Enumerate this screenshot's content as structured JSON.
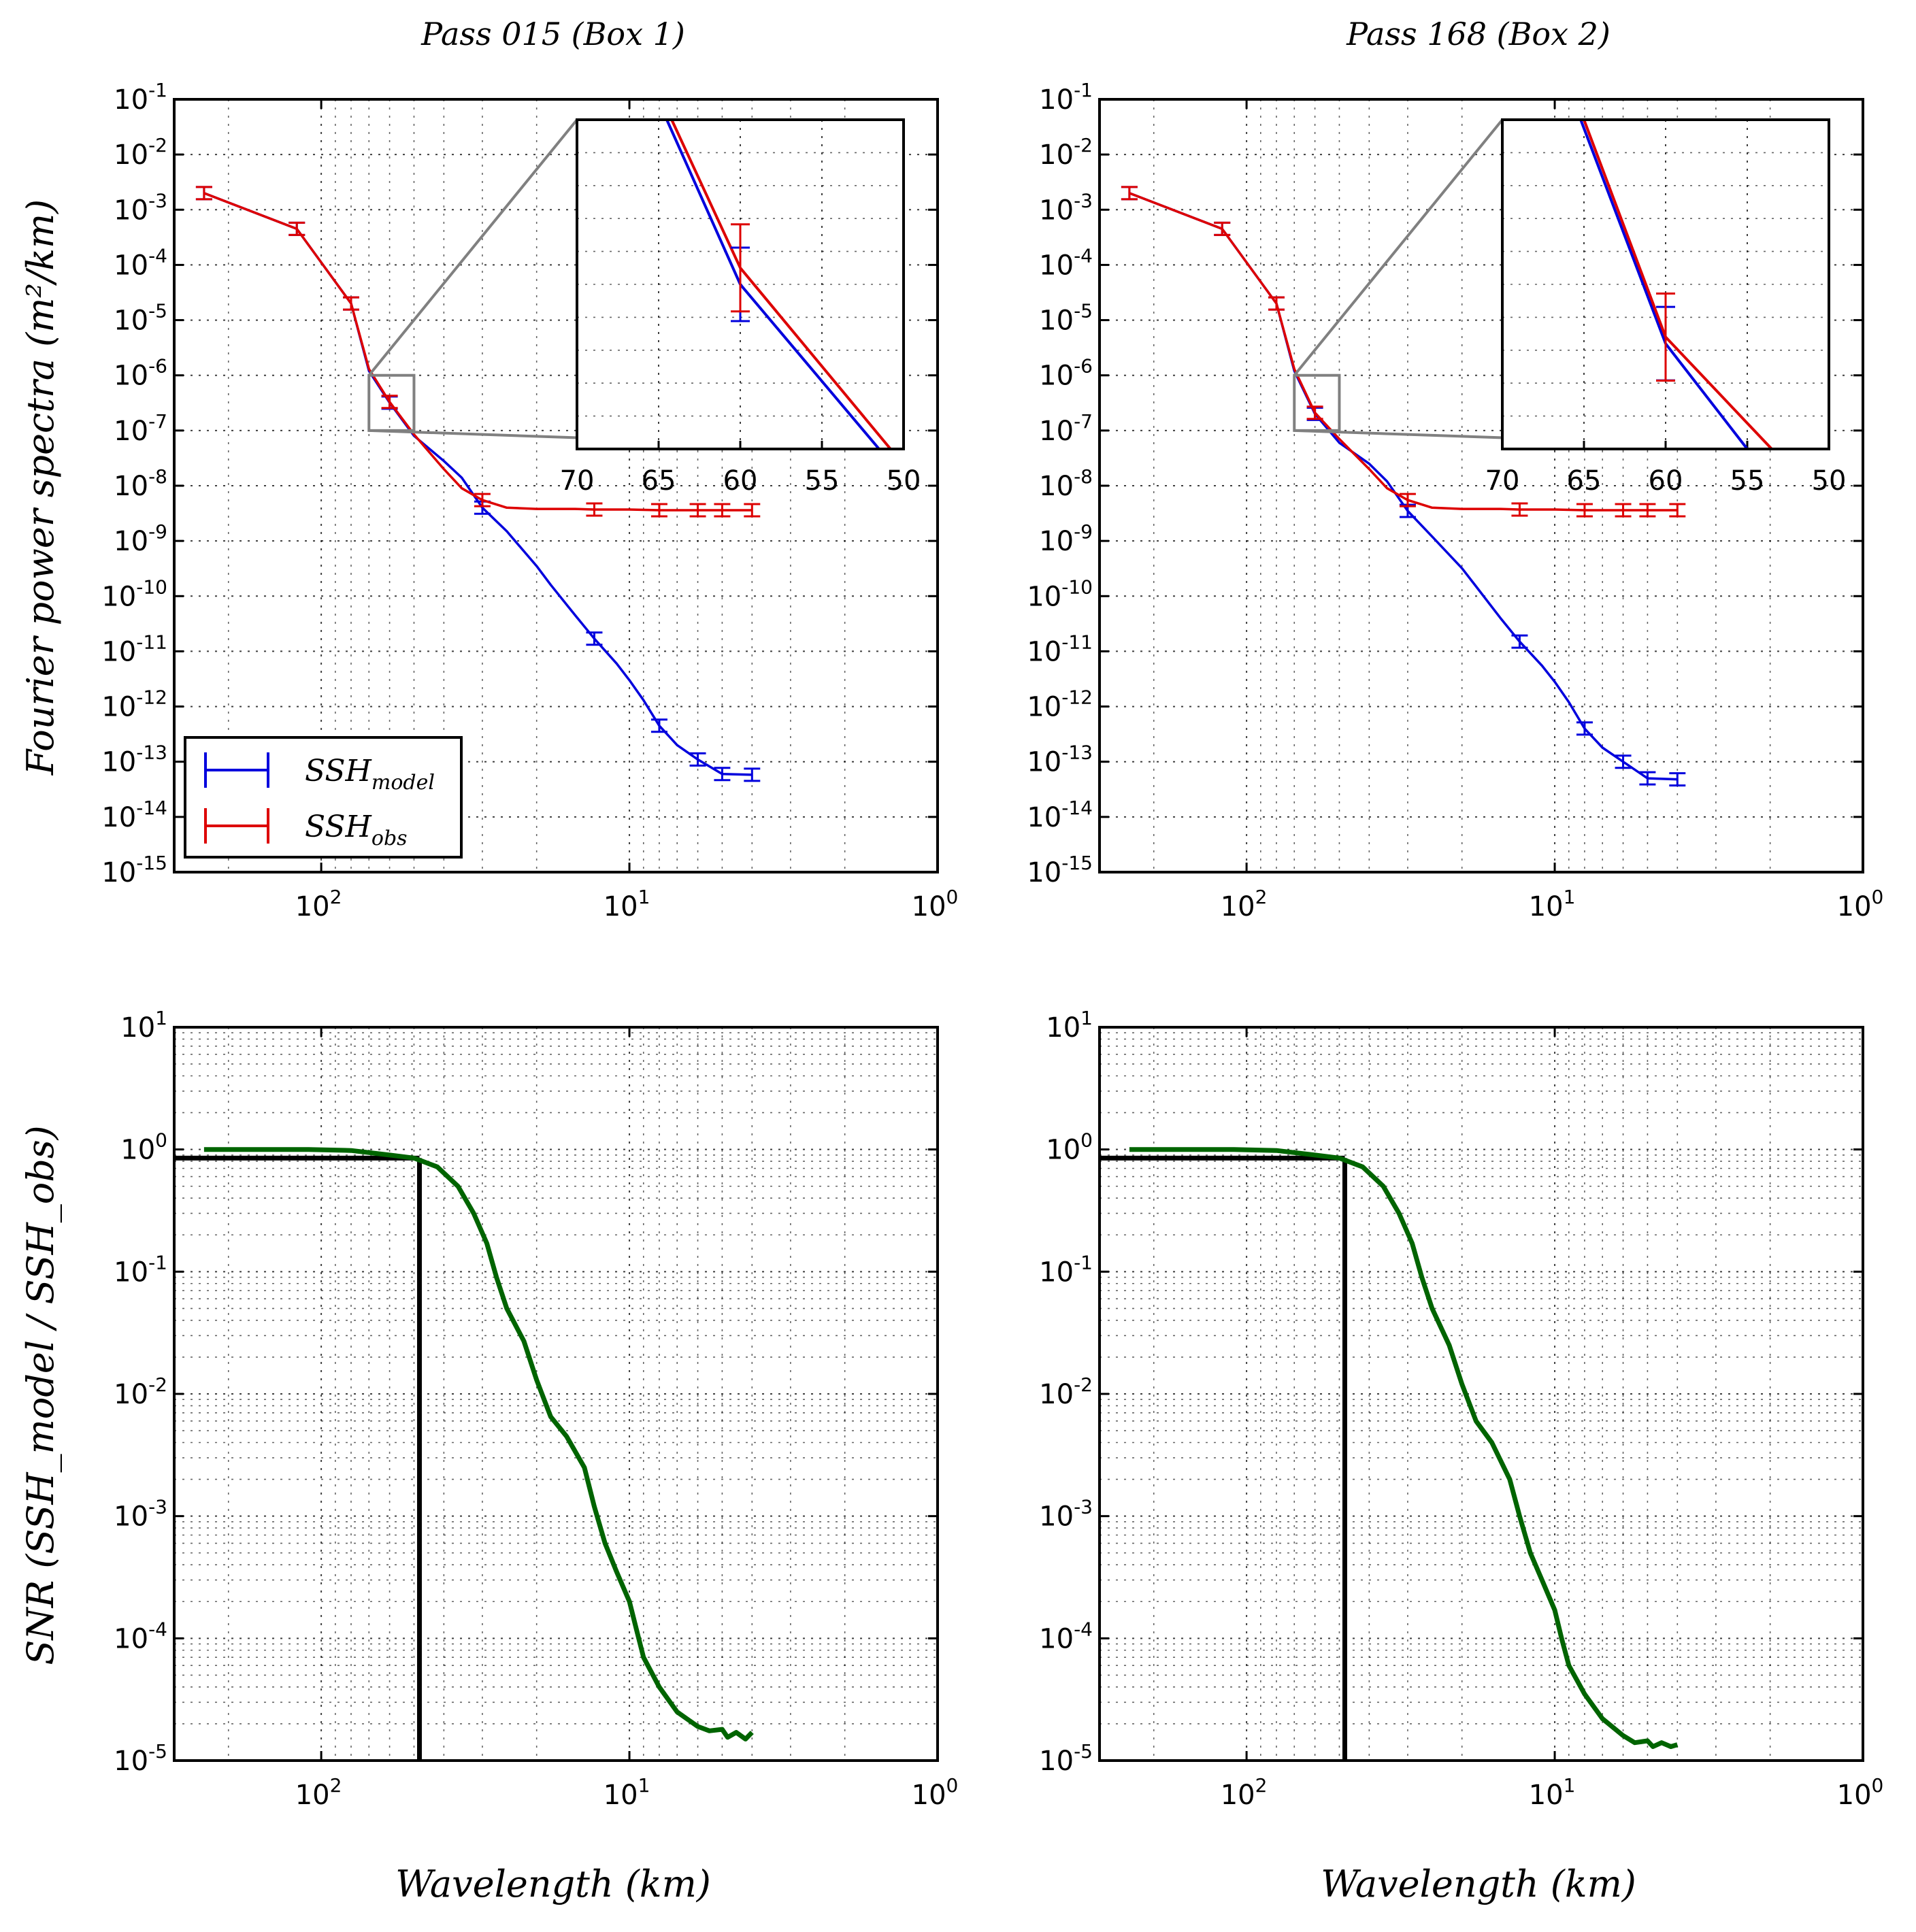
{
  "chart_data": [
    {
      "id": "spectra-box1",
      "type": "line",
      "title": "Pass 015 (Box 1)",
      "ylabel": "Fourier power spectra (m²/km)",
      "xlabel": "",
      "x_scale": "log-reversed",
      "y_scale": "log",
      "xlim_km": [
        300,
        1
      ],
      "ylim": [
        1e-15,
        0.1
      ],
      "x_ticks": [
        {
          "base": "10",
          "exp": "2"
        },
        {
          "base": "10",
          "exp": "1"
        },
        {
          "base": "10",
          "exp": "0"
        }
      ],
      "y_ticks": [
        {
          "base": "10",
          "exp": "-1"
        },
        {
          "base": "10",
          "exp": "-2"
        },
        {
          "base": "10",
          "exp": "-3"
        },
        {
          "base": "10",
          "exp": "-4"
        },
        {
          "base": "10",
          "exp": "-5"
        },
        {
          "base": "10",
          "exp": "-6"
        },
        {
          "base": "10",
          "exp": "-7"
        },
        {
          "base": "10",
          "exp": "-8"
        },
        {
          "base": "10",
          "exp": "-9"
        },
        {
          "base": "10",
          "exp": "-10"
        },
        {
          "base": "10",
          "exp": "-11"
        },
        {
          "base": "10",
          "exp": "-12"
        },
        {
          "base": "10",
          "exp": "-13"
        },
        {
          "base": "10",
          "exp": "-14"
        },
        {
          "base": "10",
          "exp": "-15"
        }
      ],
      "legend": {
        "placement": "lower-left",
        "entries": [
          {
            "series": "model",
            "base": "SSH",
            "sub": "model"
          },
          {
            "series": "obs",
            "base": "SSH",
            "sub": "obs"
          }
        ]
      },
      "series": [
        {
          "name": "SSH_model",
          "color": "#0000dd",
          "points": [
            [
              240,
              0.002
            ],
            [
              120,
              0.00045
            ],
            [
              80,
              2e-05
            ],
            [
              70,
              1.2e-06
            ],
            [
              60,
              3.2e-07
            ],
            [
              50,
              8e-08
            ],
            [
              40,
              2.8e-08
            ],
            [
              35,
              1.4e-08
            ],
            [
              30,
              4e-09
            ],
            [
              25,
              1.5e-09
            ],
            [
              20,
              3.5e-10
            ],
            [
              18,
              1.6e-10
            ],
            [
              15,
              4.5e-11
            ],
            [
              13,
              1.7e-11
            ],
            [
              11,
              6e-12
            ],
            [
              10,
              3e-12
            ],
            [
              9,
              1.3e-12
            ],
            [
              8,
              4.5e-13
            ],
            [
              7,
              2e-13
            ],
            [
              6,
              1.1e-13
            ],
            [
              5,
              6e-14
            ],
            [
              4,
              5.8e-14
            ]
          ],
          "errorbars_at": [
            240,
            120,
            80,
            60,
            30,
            13,
            8,
            6,
            5,
            4
          ]
        },
        {
          "name": "SSH_obs",
          "color": "#dd0000",
          "points": [
            [
              240,
              0.002
            ],
            [
              120,
              0.00045
            ],
            [
              80,
              2e-05
            ],
            [
              70,
              1.3e-06
            ],
            [
              60,
              3.3e-07
            ],
            [
              50,
              8.5e-08
            ],
            [
              40,
              2e-08
            ],
            [
              35,
              9e-09
            ],
            [
              30,
              5.5e-09
            ],
            [
              25,
              4e-09
            ],
            [
              20,
              3.8e-09
            ],
            [
              15,
              3.8e-09
            ],
            [
              13,
              3.7e-09
            ],
            [
              10,
              3.7e-09
            ],
            [
              8,
              3.6e-09
            ],
            [
              6,
              3.6e-09
            ],
            [
              5,
              3.6e-09
            ],
            [
              4,
              3.6e-09
            ]
          ],
          "errorbars_at": [
            240,
            120,
            80,
            60,
            30,
            13,
            8,
            6,
            5,
            4
          ]
        }
      ],
      "inset": {
        "xlim_km": [
          70,
          50
        ],
        "x_ticks": [
          "70",
          "65",
          "60",
          "55",
          "50"
        ],
        "model_line_km": [
          [
            64.5,
            0
          ],
          [
            60,
            0.5
          ],
          [
            51.5,
            1
          ]
        ],
        "obs_line_km": [
          [
            64.2,
            0
          ],
          [
            60,
            0.45
          ],
          [
            50.8,
            1
          ]
        ],
        "errorbar_km": 60,
        "zoom_box_km": [
          70,
          50
        ],
        "zoom_box_y": [
          1e-07,
          1e-06
        ]
      }
    },
    {
      "id": "spectra-box2",
      "type": "line",
      "title": "Pass 168 (Box 2)",
      "ylabel": "",
      "xlabel": "",
      "x_scale": "log-reversed",
      "y_scale": "log",
      "xlim_km": [
        300,
        1
      ],
      "ylim": [
        1e-15,
        0.1
      ],
      "x_ticks": [
        {
          "base": "10",
          "exp": "2"
        },
        {
          "base": "10",
          "exp": "1"
        },
        {
          "base": "10",
          "exp": "0"
        }
      ],
      "y_ticks": [
        {
          "base": "10",
          "exp": "-1"
        },
        {
          "base": "10",
          "exp": "-2"
        },
        {
          "base": "10",
          "exp": "-3"
        },
        {
          "base": "10",
          "exp": "-4"
        },
        {
          "base": "10",
          "exp": "-5"
        },
        {
          "base": "10",
          "exp": "-6"
        },
        {
          "base": "10",
          "exp": "-7"
        },
        {
          "base": "10",
          "exp": "-8"
        },
        {
          "base": "10",
          "exp": "-9"
        },
        {
          "base": "10",
          "exp": "-10"
        },
        {
          "base": "10",
          "exp": "-11"
        },
        {
          "base": "10",
          "exp": "-12"
        },
        {
          "base": "10",
          "exp": "-13"
        },
        {
          "base": "10",
          "exp": "-14"
        },
        {
          "base": "10",
          "exp": "-15"
        }
      ],
      "series": [
        {
          "name": "SSH_model",
          "color": "#0000dd",
          "points": [
            [
              240,
              0.002
            ],
            [
              120,
              0.00045
            ],
            [
              80,
              2e-05
            ],
            [
              70,
              1.2e-06
            ],
            [
              60,
              2e-07
            ],
            [
              50,
              6e-08
            ],
            [
              40,
              2.5e-08
            ],
            [
              35,
              1.2e-08
            ],
            [
              30,
              3.5e-09
            ],
            [
              25,
              1.2e-09
            ],
            [
              20,
              3.2e-10
            ],
            [
              18,
              1.5e-10
            ],
            [
              15,
              4e-11
            ],
            [
              13,
              1.5e-11
            ],
            [
              11,
              5.5e-12
            ],
            [
              10,
              2.8e-12
            ],
            [
              9,
              1.2e-12
            ],
            [
              8,
              4e-13
            ],
            [
              7,
              1.8e-13
            ],
            [
              6,
              1e-13
            ],
            [
              5,
              5e-14
            ],
            [
              4,
              4.8e-14
            ]
          ],
          "errorbars_at": [
            240,
            120,
            80,
            60,
            30,
            13,
            8,
            6,
            5,
            4
          ]
        },
        {
          "name": "SSH_obs",
          "color": "#dd0000",
          "points": [
            [
              240,
              0.002
            ],
            [
              120,
              0.00045
            ],
            [
              80,
              2e-05
            ],
            [
              70,
              1.3e-06
            ],
            [
              60,
              2.1e-07
            ],
            [
              50,
              7e-08
            ],
            [
              40,
              2e-08
            ],
            [
              35,
              9e-09
            ],
            [
              30,
              5.5e-09
            ],
            [
              25,
              4e-09
            ],
            [
              20,
              3.8e-09
            ],
            [
              15,
              3.8e-09
            ],
            [
              13,
              3.7e-09
            ],
            [
              10,
              3.7e-09
            ],
            [
              8,
              3.6e-09
            ],
            [
              6,
              3.6e-09
            ],
            [
              5,
              3.6e-09
            ],
            [
              4,
              3.6e-09
            ]
          ],
          "errorbars_at": [
            240,
            120,
            80,
            60,
            30,
            13,
            8,
            6,
            5,
            4
          ]
        }
      ],
      "inset": {
        "xlim_km": [
          70,
          50
        ],
        "x_ticks": [
          "70",
          "65",
          "60",
          "55",
          "50"
        ],
        "model_line_km": [
          [
            65.2,
            0
          ],
          [
            60,
            0.68
          ],
          [
            55,
            1
          ]
        ],
        "obs_line_km": [
          [
            65,
            0
          ],
          [
            60,
            0.66
          ],
          [
            53.5,
            1
          ]
        ],
        "errorbar_km": 60,
        "zoom_box_km": [
          70,
          50
        ],
        "zoom_box_y": [
          1e-07,
          1e-06
        ]
      }
    },
    {
      "id": "snr-box1",
      "type": "line",
      "title": "",
      "ylabel": "SNR (SSH_model / SSH_obs)",
      "xlabel": "Wavelength (km)",
      "x_scale": "log-reversed",
      "y_scale": "log",
      "xlim_km": [
        300,
        1
      ],
      "ylim": [
        1e-05,
        10
      ],
      "x_ticks": [
        {
          "base": "10",
          "exp": "2"
        },
        {
          "base": "10",
          "exp": "1"
        },
        {
          "base": "10",
          "exp": "0"
        }
      ],
      "y_ticks": [
        {
          "base": "10",
          "exp": "1"
        },
        {
          "base": "10",
          "exp": "0"
        },
        {
          "base": "10",
          "exp": "-1"
        },
        {
          "base": "10",
          "exp": "-2"
        },
        {
          "base": "10",
          "exp": "-3"
        },
        {
          "base": "10",
          "exp": "-4"
        },
        {
          "base": "10",
          "exp": "-5"
        }
      ],
      "threshold": {
        "snr": 0.85,
        "wavelength_km": 48
      },
      "series": [
        {
          "name": "SNR",
          "color": "#006400",
          "points": [
            [
              240,
              1.0
            ],
            [
              150,
              1.0
            ],
            [
              110,
              1.0
            ],
            [
              80,
              0.98
            ],
            [
              60,
              0.9
            ],
            [
              50,
              0.85
            ],
            [
              42,
              0.72
            ],
            [
              36,
              0.5
            ],
            [
              32,
              0.3
            ],
            [
              29,
              0.17
            ],
            [
              27,
              0.09
            ],
            [
              25,
              0.05
            ],
            [
              22,
              0.027
            ],
            [
              20,
              0.013
            ],
            [
              18,
              0.0065
            ],
            [
              16,
              0.0045
            ],
            [
              14,
              0.0025
            ],
            [
              13,
              0.0012
            ],
            [
              12,
              0.0006
            ],
            [
              11,
              0.00035
            ],
            [
              10,
              0.0002
            ],
            [
              9.5,
              0.00012
            ],
            [
              9,
              7e-05
            ],
            [
              8,
              4e-05
            ],
            [
              7,
              2.5e-05
            ],
            [
              6,
              1.9e-05
            ],
            [
              5.5,
              1.75e-05
            ],
            [
              5,
              1.8e-05
            ],
            [
              4.8,
              1.55e-05
            ],
            [
              4.5,
              1.7e-05
            ],
            [
              4.2,
              1.5e-05
            ],
            [
              4,
              1.7e-05
            ]
          ]
        }
      ]
    },
    {
      "id": "snr-box2",
      "type": "line",
      "title": "",
      "ylabel": "",
      "xlabel": "Wavelength (km)",
      "x_scale": "log-reversed",
      "y_scale": "log",
      "xlim_km": [
        300,
        1
      ],
      "ylim": [
        1e-05,
        10
      ],
      "x_ticks": [
        {
          "base": "10",
          "exp": "2"
        },
        {
          "base": "10",
          "exp": "1"
        },
        {
          "base": "10",
          "exp": "0"
        }
      ],
      "y_ticks": [
        {
          "base": "10",
          "exp": "1"
        },
        {
          "base": "10",
          "exp": "0"
        },
        {
          "base": "10",
          "exp": "-1"
        },
        {
          "base": "10",
          "exp": "-2"
        },
        {
          "base": "10",
          "exp": "-3"
        },
        {
          "base": "10",
          "exp": "-4"
        },
        {
          "base": "10",
          "exp": "-5"
        }
      ],
      "threshold": {
        "snr": 0.85,
        "wavelength_km": 48
      },
      "series": [
        {
          "name": "SNR",
          "color": "#006400",
          "points": [
            [
              240,
              1.0
            ],
            [
              150,
              1.0
            ],
            [
              110,
              1.0
            ],
            [
              80,
              0.98
            ],
            [
              60,
              0.9
            ],
            [
              50,
              0.85
            ],
            [
              42,
              0.72
            ],
            [
              36,
              0.5
            ],
            [
              32,
              0.3
            ],
            [
              29,
              0.17
            ],
            [
              27,
              0.09
            ],
            [
              25,
              0.05
            ],
            [
              22,
              0.025
            ],
            [
              20,
              0.012
            ],
            [
              18,
              0.006
            ],
            [
              16,
              0.004
            ],
            [
              14,
              0.002
            ],
            [
              13,
              0.001
            ],
            [
              12,
              0.0005
            ],
            [
              11,
              0.0003
            ],
            [
              10,
              0.00017
            ],
            [
              9.5,
              0.0001
            ],
            [
              9,
              6e-05
            ],
            [
              8,
              3.5e-05
            ],
            [
              7,
              2.2e-05
            ],
            [
              6,
              1.6e-05
            ],
            [
              5.5,
              1.4e-05
            ],
            [
              5,
              1.45e-05
            ],
            [
              4.8,
              1.3e-05
            ],
            [
              4.5,
              1.4e-05
            ],
            [
              4.2,
              1.3e-05
            ],
            [
              4,
              1.35e-05
            ]
          ]
        }
      ]
    }
  ]
}
